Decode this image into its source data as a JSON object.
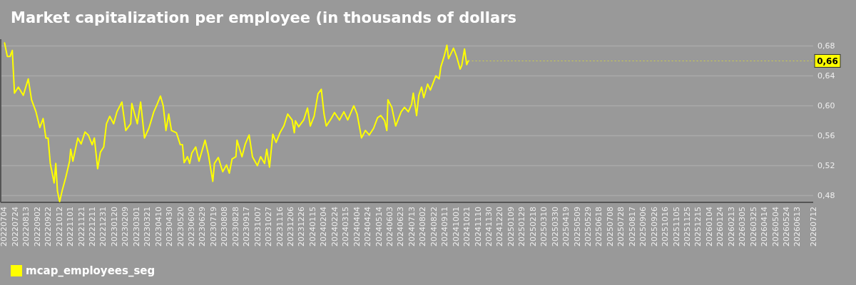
{
  "chart_data": {
    "type": "line",
    "title": "Market capitalization per employee (in thousands of dollars",
    "xlim": [
      "2022-06-28",
      "2026-07-12"
    ],
    "ylim": [
      0.471,
      0.689
    ],
    "yticks": [
      {
        "value": 0.48,
        "label": "0,48"
      },
      {
        "value": 0.52,
        "label": "0,52"
      },
      {
        "value": 0.56,
        "label": "0,56"
      },
      {
        "value": 0.6,
        "label": "0,60"
      },
      {
        "value": 0.64,
        "label": "0,64"
      },
      {
        "value": 0.68,
        "label": "0,68"
      }
    ],
    "xticks": [
      {
        "value": "2022-07-04",
        "label": "20220704"
      },
      {
        "value": "2022-07-24",
        "label": "20220724"
      },
      {
        "value": "2022-08-13",
        "label": "20220813"
      },
      {
        "value": "2022-09-02",
        "label": "20220902"
      },
      {
        "value": "2022-09-22",
        "label": "20220922"
      },
      {
        "value": "2022-10-12",
        "label": "20221012"
      },
      {
        "value": "2022-11-01",
        "label": "20221101"
      },
      {
        "value": "2022-11-21",
        "label": "20221121"
      },
      {
        "value": "2022-12-11",
        "label": "20221211"
      },
      {
        "value": "2022-12-31",
        "label": "20221231"
      },
      {
        "value": "2023-01-20",
        "label": "20230120"
      },
      {
        "value": "2023-02-09",
        "label": "20230209"
      },
      {
        "value": "2023-03-01",
        "label": "20230301"
      },
      {
        "value": "2023-03-21",
        "label": "20230321"
      },
      {
        "value": "2023-04-10",
        "label": "20230410"
      },
      {
        "value": "2023-04-30",
        "label": "20230430"
      },
      {
        "value": "2023-05-20",
        "label": "20230520"
      },
      {
        "value": "2023-06-09",
        "label": "20230609"
      },
      {
        "value": "2023-06-29",
        "label": "20230629"
      },
      {
        "value": "2023-07-19",
        "label": "20230719"
      },
      {
        "value": "2023-08-08",
        "label": "20230808"
      },
      {
        "value": "2023-08-28",
        "label": "20230828"
      },
      {
        "value": "2023-09-17",
        "label": "20230917"
      },
      {
        "value": "2023-10-07",
        "label": "20231007"
      },
      {
        "value": "2023-10-27",
        "label": "20231027"
      },
      {
        "value": "2023-11-16",
        "label": "20231116"
      },
      {
        "value": "2023-12-06",
        "label": "20231206"
      },
      {
        "value": "2023-12-26",
        "label": "20231226"
      },
      {
        "value": "2024-01-15",
        "label": "20240115"
      },
      {
        "value": "2024-02-04",
        "label": "20240204"
      },
      {
        "value": "2024-02-24",
        "label": "20240224"
      },
      {
        "value": "2024-03-15",
        "label": "20240315"
      },
      {
        "value": "2024-04-04",
        "label": "20240404"
      },
      {
        "value": "2024-04-24",
        "label": "20240424"
      },
      {
        "value": "2024-05-14",
        "label": "20240514"
      },
      {
        "value": "2024-06-03",
        "label": "20240603"
      },
      {
        "value": "2024-06-23",
        "label": "20240623"
      },
      {
        "value": "2024-07-13",
        "label": "20240713"
      },
      {
        "value": "2024-08-02",
        "label": "20240802"
      },
      {
        "value": "2024-08-22",
        "label": "20240822"
      },
      {
        "value": "2024-09-11",
        "label": "20240911"
      },
      {
        "value": "2024-10-01",
        "label": "20241001"
      },
      {
        "value": "2024-10-21",
        "label": "20241021"
      },
      {
        "value": "2024-11-10",
        "label": "20241110"
      },
      {
        "value": "2024-11-30",
        "label": "20241130"
      },
      {
        "value": "2024-12-20",
        "label": "20241220"
      },
      {
        "value": "2025-01-09",
        "label": "20250109"
      },
      {
        "value": "2025-01-29",
        "label": "20250129"
      },
      {
        "value": "2025-02-18",
        "label": "20250218"
      },
      {
        "value": "2025-03-10",
        "label": "20250310"
      },
      {
        "value": "2025-03-30",
        "label": "20250330"
      },
      {
        "value": "2025-04-19",
        "label": "20250419"
      },
      {
        "value": "2025-05-09",
        "label": "20250509"
      },
      {
        "value": "2025-05-29",
        "label": "20250529"
      },
      {
        "value": "2025-06-18",
        "label": "20250618"
      },
      {
        "value": "2025-07-08",
        "label": "20250708"
      },
      {
        "value": "2025-07-28",
        "label": "20250728"
      },
      {
        "value": "2025-08-17",
        "label": "20250817"
      },
      {
        "value": "2025-09-06",
        "label": "20250906"
      },
      {
        "value": "2025-09-26",
        "label": "20250926"
      },
      {
        "value": "2025-10-16",
        "label": "20251016"
      },
      {
        "value": "2025-11-05",
        "label": "20251105"
      },
      {
        "value": "2025-11-25",
        "label": "20251125"
      },
      {
        "value": "2025-12-15",
        "label": "20251215"
      },
      {
        "value": "2026-01-04",
        "label": "20260104"
      },
      {
        "value": "2026-01-24",
        "label": "20260124"
      },
      {
        "value": "2026-02-13",
        "label": "20260213"
      },
      {
        "value": "2026-03-05",
        "label": "20260305"
      },
      {
        "value": "2026-03-25",
        "label": "20260325"
      },
      {
        "value": "2026-04-14",
        "label": "20260414"
      },
      {
        "value": "2026-05-04",
        "label": "20260504"
      },
      {
        "value": "2026-05-24",
        "label": "20260524"
      },
      {
        "value": "2026-06-13",
        "label": "20260613"
      },
      {
        "value": "2026-07-12",
        "label": "20260712"
      }
    ],
    "grid": "y",
    "legend": "bottom left",
    "annotations": [
      {
        "text": "0,66",
        "x": "2024-10-24",
        "y": 0.66
      }
    ],
    "series": [
      {
        "name": "mcap_employees_seg",
        "color": "#ffff00",
        "x": [
          "2022-07-05",
          "2022-07-10",
          "2022-07-15",
          "2022-07-19",
          "2022-07-23",
          "2022-07-30",
          "2022-08-08",
          "2022-08-17",
          "2022-08-23",
          "2022-08-31",
          "2022-09-07",
          "2022-09-13",
          "2022-09-18",
          "2022-09-22",
          "2022-09-26",
          "2022-10-03",
          "2022-10-06",
          "2022-10-09",
          "2022-10-13",
          "2022-10-18",
          "2022-10-24",
          "2022-10-31",
          "2022-11-02",
          "2022-11-06",
          "2022-11-15",
          "2022-11-21",
          "2022-11-28",
          "2022-12-04",
          "2022-12-11",
          "2022-12-15",
          "2022-12-21",
          "2022-12-26",
          "2023-01-01",
          "2023-01-06",
          "2023-01-12",
          "2023-01-19",
          "2023-01-25",
          "2023-02-03",
          "2023-02-10",
          "2023-02-19",
          "2023-02-21",
          "2023-03-03",
          "2023-03-09",
          "2023-03-16",
          "2023-03-24",
          "2023-04-02",
          "2023-04-08",
          "2023-04-14",
          "2023-04-19",
          "2023-04-24",
          "2023-04-29",
          "2023-05-04",
          "2023-05-13",
          "2023-05-20",
          "2023-05-24",
          "2023-05-27",
          "2023-06-02",
          "2023-06-06",
          "2023-06-10",
          "2023-06-17",
          "2023-06-23",
          "2023-07-04",
          "2023-07-10",
          "2023-07-18",
          "2023-07-21",
          "2023-07-28",
          "2023-08-05",
          "2023-08-12",
          "2023-08-17",
          "2023-08-22",
          "2023-08-29",
          "2023-08-31",
          "2023-09-09",
          "2023-09-15",
          "2023-09-22",
          "2023-09-28",
          "2023-10-07",
          "2023-10-13",
          "2023-10-20",
          "2023-10-24",
          "2023-10-29",
          "2023-11-04",
          "2023-11-10",
          "2023-11-17",
          "2023-11-24",
          "2023-12-01",
          "2023-12-09",
          "2023-12-13",
          "2023-12-15",
          "2023-12-21",
          "2023-12-30",
          "2024-01-06",
          "2024-01-11",
          "2024-01-18",
          "2024-01-25",
          "2024-01-31",
          "2024-02-05",
          "2024-02-09",
          "2024-02-18",
          "2024-02-24",
          "2024-03-04",
          "2024-03-12",
          "2024-03-19",
          "2024-03-30",
          "2024-04-05",
          "2024-04-13",
          "2024-04-20",
          "2024-04-27",
          "2024-05-05",
          "2024-05-12",
          "2024-05-18",
          "2024-05-25",
          "2024-05-29",
          "2024-05-31",
          "2024-06-07",
          "2024-06-14",
          "2024-06-24",
          "2024-06-30",
          "2024-07-07",
          "2024-07-13",
          "2024-07-16",
          "2024-07-22",
          "2024-07-26",
          "2024-07-31",
          "2024-08-04",
          "2024-08-11",
          "2024-08-16",
          "2024-08-26",
          "2024-09-01",
          "2024-09-04",
          "2024-09-10",
          "2024-09-15",
          "2024-09-18",
          "2024-09-27",
          "2024-10-03",
          "2024-10-09",
          "2024-10-12",
          "2024-10-17",
          "2024-10-21",
          "2024-10-24"
        ],
        "values": [
          0.684,
          0.666,
          0.666,
          0.674,
          0.617,
          0.625,
          0.614,
          0.636,
          0.608,
          0.592,
          0.571,
          0.583,
          0.557,
          0.557,
          0.523,
          0.497,
          0.523,
          0.486,
          0.472,
          0.488,
          0.504,
          0.526,
          0.542,
          0.526,
          0.557,
          0.549,
          0.565,
          0.561,
          0.548,
          0.557,
          0.516,
          0.538,
          0.545,
          0.576,
          0.586,
          0.576,
          0.592,
          0.605,
          0.567,
          0.576,
          0.603,
          0.576,
          0.605,
          0.557,
          0.57,
          0.592,
          0.602,
          0.613,
          0.6,
          0.567,
          0.589,
          0.567,
          0.564,
          0.548,
          0.548,
          0.524,
          0.532,
          0.523,
          0.537,
          0.545,
          0.526,
          0.554,
          0.535,
          0.499,
          0.523,
          0.531,
          0.512,
          0.521,
          0.51,
          0.529,
          0.532,
          0.554,
          0.532,
          0.549,
          0.561,
          0.532,
          0.52,
          0.532,
          0.523,
          0.542,
          0.518,
          0.562,
          0.551,
          0.564,
          0.573,
          0.589,
          0.581,
          0.564,
          0.58,
          0.572,
          0.581,
          0.597,
          0.573,
          0.586,
          0.616,
          0.622,
          0.589,
          0.573,
          0.583,
          0.591,
          0.581,
          0.592,
          0.581,
          0.6,
          0.589,
          0.557,
          0.567,
          0.561,
          0.57,
          0.584,
          0.587,
          0.58,
          0.567,
          0.608,
          0.598,
          0.573,
          0.592,
          0.598,
          0.592,
          0.602,
          0.617,
          0.587,
          0.614,
          0.625,
          0.611,
          0.629,
          0.621,
          0.64,
          0.636,
          0.652,
          0.666,
          0.681,
          0.663,
          0.677,
          0.665,
          0.649,
          0.654,
          0.676,
          0.655,
          0.66
        ]
      }
    ]
  }
}
